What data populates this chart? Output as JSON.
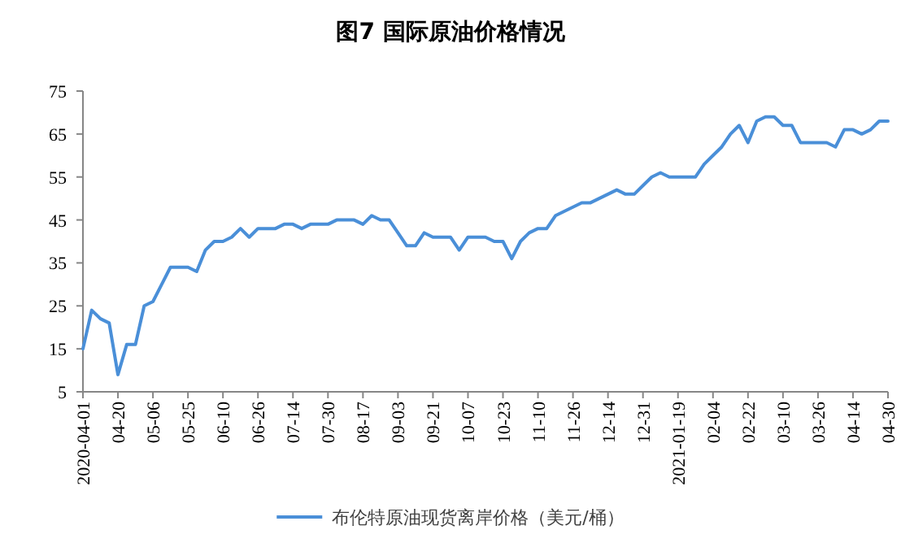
{
  "chart_data": {
    "type": "line",
    "title": "图7  国际原油价格情况",
    "categories": [
      "2020-04-01",
      null,
      null,
      null,
      "04-20",
      null,
      null,
      null,
      "05-06",
      null,
      null,
      null,
      "05-25",
      null,
      null,
      null,
      "06-10",
      null,
      null,
      null,
      "06-26",
      null,
      null,
      null,
      "07-14",
      null,
      null,
      null,
      "07-30",
      null,
      null,
      null,
      "08-17",
      null,
      null,
      null,
      "09-03",
      null,
      null,
      null,
      "09-21",
      null,
      null,
      null,
      "10-07",
      null,
      null,
      null,
      "10-23",
      null,
      null,
      null,
      "11-10",
      null,
      null,
      null,
      "11-26",
      null,
      null,
      null,
      "12-14",
      null,
      null,
      null,
      "12-31",
      null,
      null,
      null,
      "2021-01-19",
      null,
      null,
      null,
      "02-04",
      null,
      null,
      null,
      "02-22",
      null,
      null,
      null,
      "03-10",
      null,
      null,
      null,
      "03-26",
      null,
      null,
      null,
      "04-14",
      null,
      null,
      null,
      "04-30"
    ],
    "series": [
      {
        "name": "布伦特原油现货离岸价格（美元/桶）",
        "color": "#4a8fd8",
        "values": [
          15,
          24,
          22,
          21,
          9,
          16,
          16,
          25,
          26,
          30,
          34,
          34,
          34,
          33,
          38,
          40,
          40,
          41,
          43,
          41,
          43,
          43,
          43,
          44,
          44,
          43,
          44,
          44,
          44,
          45,
          45,
          45,
          44,
          46,
          45,
          45,
          42,
          39,
          39,
          42,
          41,
          41,
          41,
          38,
          41,
          41,
          41,
          40,
          40,
          36,
          40,
          42,
          43,
          43,
          46,
          47,
          48,
          49,
          49,
          50,
          51,
          52,
          51,
          51,
          53,
          55,
          56,
          55,
          55,
          55,
          55,
          58,
          60,
          62,
          65,
          67,
          63,
          68,
          69,
          69,
          67,
          67,
          63,
          63,
          63,
          63,
          62,
          66,
          66,
          65,
          66,
          68,
          68
        ]
      }
    ],
    "ylim": [
      5,
      75
    ],
    "yticks": [
      5,
      15,
      25,
      35,
      45,
      55,
      65,
      75
    ],
    "grid": false,
    "legend": "bottom",
    "marker": "none",
    "line_style": "solid"
  }
}
